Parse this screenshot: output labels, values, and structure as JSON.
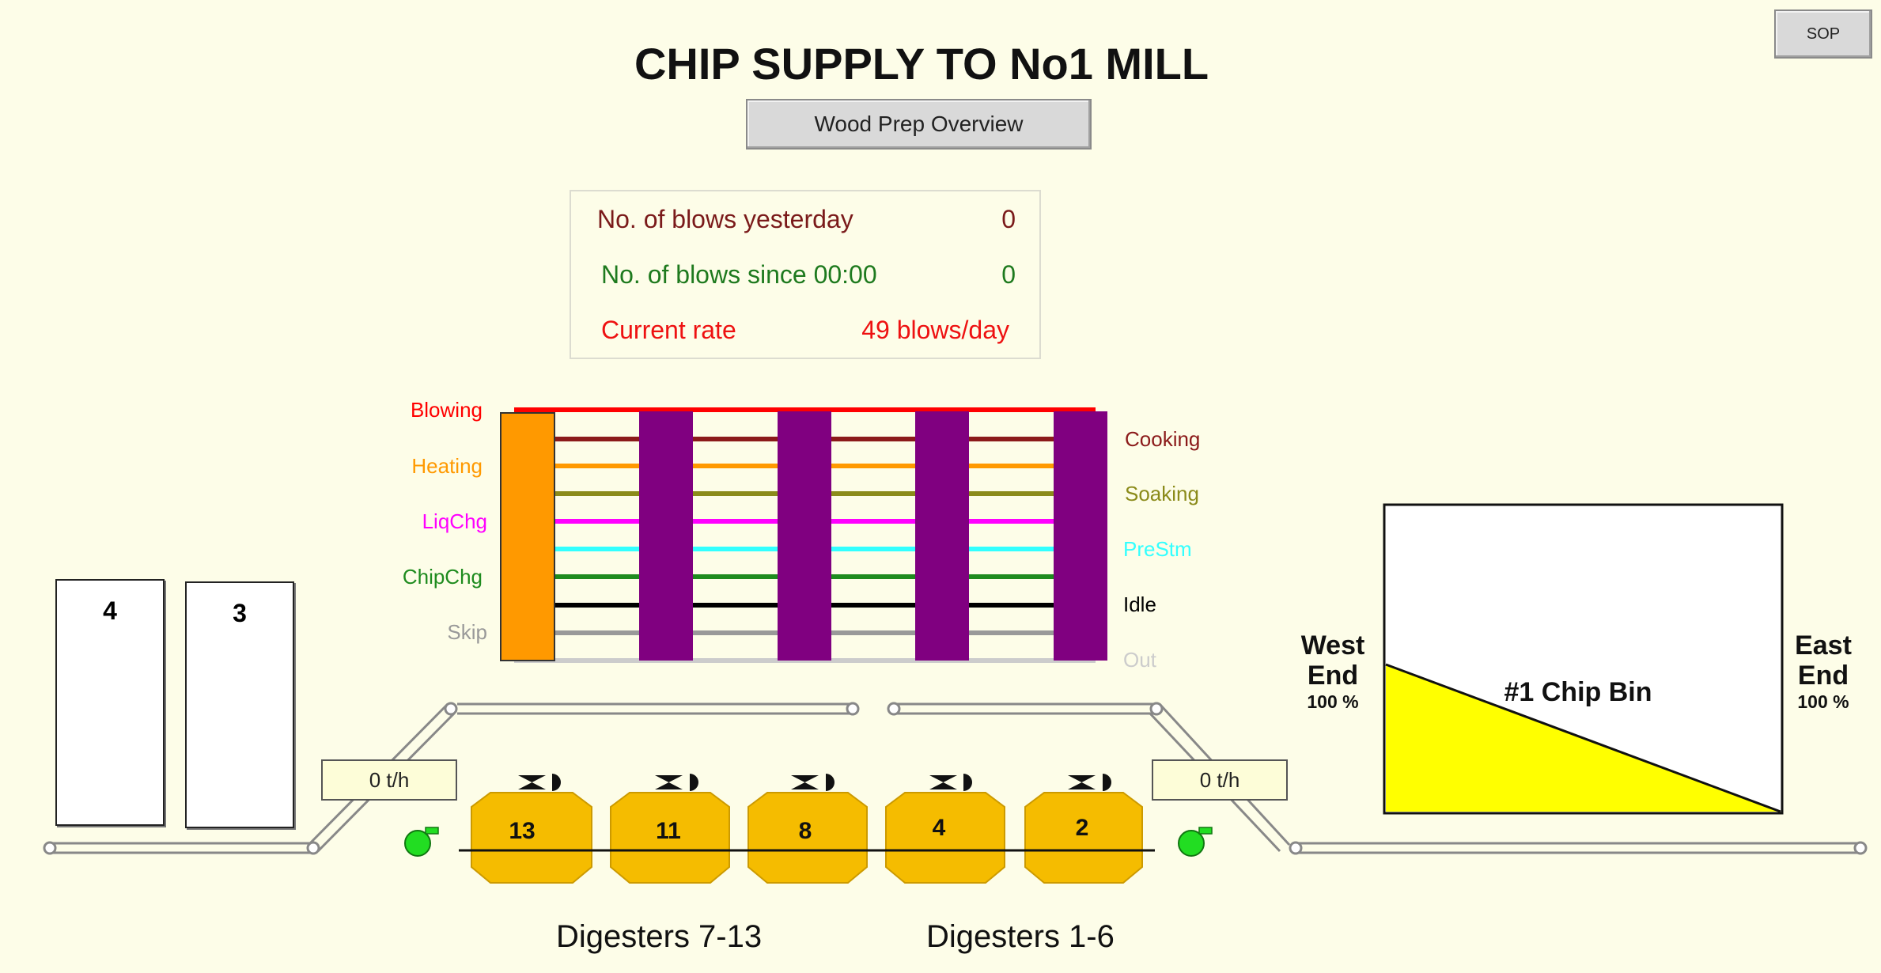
{
  "header": {
    "title": "CHIP SUPPLY TO No1 MILL",
    "sop_label": "SOP",
    "overview_label": "Wood Prep Overview"
  },
  "blows": {
    "yesterday_label": "No. of blows yesterday",
    "yesterday_value": "0",
    "since_label": "No. of blows since 00:00",
    "since_value": "0",
    "rate_label": "Current rate",
    "rate_value": "49 blows/day"
  },
  "states": {
    "left": [
      "Blowing",
      "Heating",
      "LiqChg",
      "ChipChg",
      "Skip"
    ],
    "right": [
      "Cooking",
      "Soaking",
      "PreStm",
      "Idle",
      "Out"
    ]
  },
  "colors": {
    "blowing": "#ff0000",
    "cooking": "#8b1a1a",
    "heating": "#ff9900",
    "soaking": "#8b8b1a",
    "liqchg": "#ff00ff",
    "prestm": "#33ffff",
    "chipchg": "#1e8b1e",
    "idle": "#000000",
    "skip": "#999999",
    "out": "#cccccc",
    "digester_state": "#800080",
    "digester_active": "#ff9900",
    "digester_body": "#f5bc00",
    "bin_fill": "#ffff00",
    "fan": "#22dd22"
  },
  "silos": [
    "4",
    "3"
  ],
  "rates": {
    "left": "0 t/h",
    "right": "0 t/h"
  },
  "digesters": [
    "13",
    "11",
    "8",
    "4",
    "2"
  ],
  "sections": {
    "left": "Digesters 7-13",
    "right": "Digesters 1-6"
  },
  "bin": {
    "name": "#1 Chip Bin",
    "west_label": "West\nEnd",
    "west_pct": "100 %",
    "east_label": "East\nEnd",
    "east_pct": "100 %",
    "west_level": 1.0,
    "east_level": 1.0
  }
}
